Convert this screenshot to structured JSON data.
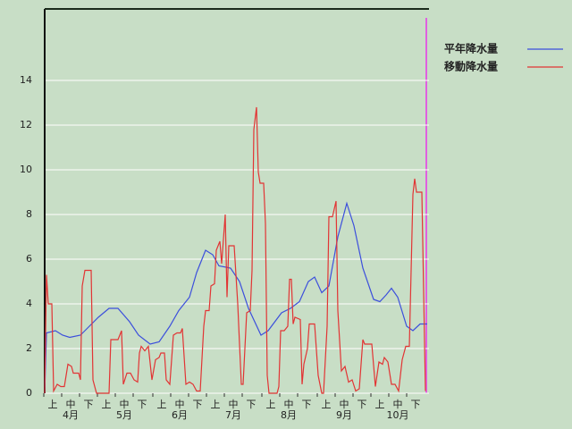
{
  "chart_data": {
    "type": "line",
    "xlim": [
      0,
      214
    ],
    "ylim": [
      0,
      17.2
    ],
    "yticks": [
      0,
      2,
      4,
      6,
      8,
      10,
      12,
      14
    ],
    "xticks": [
      {
        "value": 4.5,
        "label": "上"
      },
      {
        "value": 14.5,
        "label": "中"
      },
      {
        "value": 24.5,
        "label": "下"
      },
      {
        "value": 34.5,
        "label": "上"
      },
      {
        "value": 44.5,
        "label": "中"
      },
      {
        "value": 54.5,
        "label": "下"
      },
      {
        "value": 65.5,
        "label": "上"
      },
      {
        "value": 75.5,
        "label": "中"
      },
      {
        "value": 85.5,
        "label": "下"
      },
      {
        "value": 95.5,
        "label": "上"
      },
      {
        "value": 105.5,
        "label": "中"
      },
      {
        "value": 115.5,
        "label": "下"
      },
      {
        "value": 126.5,
        "label": "上"
      },
      {
        "value": 136.5,
        "label": "中"
      },
      {
        "value": 146.5,
        "label": "下"
      },
      {
        "value": 157.5,
        "label": "上"
      },
      {
        "value": 167.5,
        "label": "中"
      },
      {
        "value": 177.5,
        "label": "下"
      },
      {
        "value": 187.5,
        "label": "上"
      },
      {
        "value": 197.5,
        "label": "中"
      },
      {
        "value": 207.5,
        "label": "下"
      }
    ],
    "month_labels": [
      {
        "value": 14.5,
        "label": "4月"
      },
      {
        "value": 44.5,
        "label": "5月"
      },
      {
        "value": 75.5,
        "label": "6月"
      },
      {
        "value": 105.5,
        "label": "7月"
      },
      {
        "value": 136.5,
        "label": "8月"
      },
      {
        "value": 167.5,
        "label": "9月"
      },
      {
        "value": 197.5,
        "label": "10月"
      }
    ],
    "grid": true,
    "legend": "top-right",
    "series": [
      {
        "name": "平年降水量",
        "color": "#3c4fdc",
        "x": [
          0,
          1,
          6,
          10,
          14,
          20,
          25,
          30,
          36,
          41,
          47.5,
          52.5,
          59,
          64,
          70,
          75,
          81,
          85,
          90,
          94,
          97.5,
          104,
          109,
          114,
          121,
          125,
          132.5,
          137.5,
          142.5,
          147.5,
          151,
          155,
          159,
          164,
          169,
          173,
          178,
          184,
          187.5,
          191,
          194,
          197.5,
          202.5,
          206,
          210,
          214
        ],
        "values": [
          0,
          2.7,
          2.8,
          2.6,
          2.5,
          2.6,
          3.0,
          3.4,
          3.8,
          3.8,
          3.2,
          2.6,
          2.2,
          2.3,
          3.0,
          3.7,
          4.3,
          5.4,
          6.4,
          6.2,
          5.7,
          5.6,
          5.0,
          3.8,
          2.6,
          2.8,
          3.6,
          3.8,
          4.1,
          5.0,
          5.2,
          4.5,
          4.8,
          7.0,
          8.5,
          7.5,
          5.6,
          4.2,
          4.1,
          4.4,
          4.7,
          4.3,
          3.0,
          2.8,
          3.1,
          3.1
        ]
      },
      {
        "name": "移動降水量",
        "color": "#e23434",
        "x": [
          0,
          1,
          2,
          4,
          5,
          7,
          9,
          11,
          13,
          15,
          16,
          19,
          20,
          21,
          22.5,
          26,
          27,
          29,
          36,
          37,
          41,
          43,
          44,
          46,
          48,
          50,
          52,
          53,
          54,
          56,
          58,
          60,
          62,
          64,
          65,
          67,
          68,
          70,
          72,
          74,
          76,
          77,
          79,
          81,
          83,
          85,
          87,
          89,
          90,
          92,
          93,
          95,
          96,
          97,
          98,
          99,
          101,
          102,
          103,
          106,
          108,
          110,
          111,
          113,
          115,
          116,
          117,
          118.5,
          119.5,
          120.5,
          122.5,
          123.5,
          124.5,
          125.5,
          130,
          131,
          132,
          134,
          136,
          137,
          138,
          139,
          140,
          143,
          144,
          145,
          147,
          148,
          151,
          153,
          155,
          156,
          158,
          159,
          161,
          163,
          164,
          166,
          168,
          170,
          172,
          174,
          176,
          178,
          179,
          183,
          185,
          187,
          189,
          190,
          192,
          194,
          196,
          198,
          200,
          202,
          204,
          206,
          207,
          208,
          211,
          213
        ],
        "values": [
          0,
          5.3,
          4.0,
          4.0,
          0.1,
          0.4,
          0.3,
          0.3,
          1.3,
          1.2,
          0.9,
          0.9,
          0.6,
          4.8,
          5.5,
          5.5,
          0.6,
          0,
          0,
          2.4,
          2.4,
          2.8,
          0.4,
          0.9,
          0.9,
          0.6,
          0.5,
          1.8,
          2.1,
          1.9,
          2.1,
          0.6,
          1.5,
          1.6,
          1.8,
          1.8,
          0.6,
          0.4,
          2.6,
          2.7,
          2.7,
          2.9,
          0.4,
          0.5,
          0.4,
          0.1,
          0.1,
          3.0,
          3.7,
          3.7,
          4.8,
          4.9,
          6.4,
          6.6,
          6.8,
          5.8,
          8.0,
          4.3,
          6.6,
          6.6,
          4.0,
          0.4,
          0.4,
          3.6,
          3.7,
          5.5,
          11.8,
          12.8,
          9.9,
          9.4,
          9.4,
          7.6,
          0.8,
          0,
          0,
          0.3,
          2.8,
          2.8,
          3.0,
          5.1,
          5.1,
          3.1,
          3.4,
          3.3,
          0.4,
          1.3,
          2.0,
          3.1,
          3.1,
          0.8,
          0,
          0,
          3.0,
          7.9,
          7.9,
          8.6,
          3.7,
          1.0,
          1.2,
          0.5,
          0.6,
          0.1,
          0.2,
          2.4,
          2.2,
          2.2,
          0.3,
          1.4,
          1.3,
          1.6,
          1.4,
          0.4,
          0.4,
          0.1,
          1.5,
          2.1,
          2.1,
          8.9,
          9.6,
          9.0,
          9.0,
          0.1
        ]
      }
    ]
  }
}
